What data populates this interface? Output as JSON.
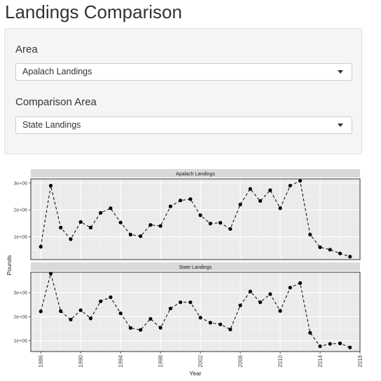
{
  "page": {
    "title": "Landings Comparison"
  },
  "controls": {
    "area": {
      "label": "Area",
      "value": "Apalach Landings",
      "icon": "chevron-down-icon"
    },
    "comparison_area": {
      "label": "Comparison Area",
      "value": "State Landings",
      "icon": "chevron-down-icon"
    }
  },
  "chart_data": {
    "type": "line",
    "style": {
      "line": "dashed",
      "marker": "filled-circle",
      "color": "#000000",
      "panel_bg": "#ebebeb",
      "strip_bg": "#d9d9d9",
      "grid": true
    },
    "xlabel": "Year",
    "ylabel": "Pounds",
    "xlim": [
      1985,
      2018
    ],
    "x_ticks": [
      "1986",
      "1990",
      "1994",
      "1998",
      "2002",
      "2006",
      "2010",
      "2014",
      "2018"
    ],
    "facets": [
      {
        "name": "Apalach Landings",
        "ylim": [
          150000,
          3150000
        ],
        "y_ticks": [
          "1e+06",
          "2e+06",
          "3e+06"
        ],
        "x": [
          1986,
          1987,
          1988,
          1989,
          1990,
          1991,
          1992,
          1993,
          1994,
          1995,
          1996,
          1997,
          1998,
          1999,
          2000,
          2001,
          2002,
          2003,
          2004,
          2005,
          2006,
          2007,
          2008,
          2009,
          2010,
          2011,
          2012,
          2013,
          2014,
          2015,
          2016,
          2017
        ],
        "values": [
          630000,
          2900000,
          1340000,
          910000,
          1550000,
          1340000,
          1890000,
          2060000,
          1530000,
          1080000,
          1020000,
          1440000,
          1400000,
          2130000,
          2350000,
          2400000,
          1800000,
          1490000,
          1520000,
          1290000,
          2200000,
          2780000,
          2330000,
          2730000,
          2060000,
          2900000,
          3080000,
          1080000,
          610000,
          520000,
          380000,
          260000
        ]
      },
      {
        "name": "State Landings",
        "ylim": [
          550000,
          3850000
        ],
        "y_ticks": [
          "1e+06",
          "2e+06",
          "3e+06"
        ],
        "x": [
          1986,
          1987,
          1988,
          1989,
          1990,
          1991,
          1992,
          1993,
          1994,
          1995,
          1996,
          1997,
          1998,
          1999,
          2000,
          2001,
          2002,
          2003,
          2004,
          2005,
          2006,
          2007,
          2008,
          2009,
          2010,
          2011,
          2012,
          2013,
          2014,
          2015,
          2016,
          2017
        ],
        "values": [
          2220000,
          3800000,
          2230000,
          1880000,
          2270000,
          1930000,
          2640000,
          2810000,
          2140000,
          1530000,
          1450000,
          1910000,
          1540000,
          2340000,
          2600000,
          2600000,
          1960000,
          1750000,
          1680000,
          1470000,
          2470000,
          3050000,
          2600000,
          2940000,
          2240000,
          3210000,
          3400000,
          1330000,
          770000,
          870000,
          890000,
          720000
        ]
      }
    ]
  }
}
